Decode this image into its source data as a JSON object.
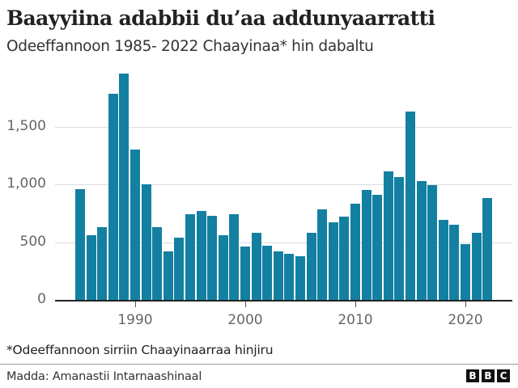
{
  "header": {
    "title": "Baayyiina adabbii du’aa addunyaarratti",
    "subtitle": "Odeeffannoon 1985- 2022 Chaayinaa* hin dabaltu"
  },
  "footer": {
    "footnote": "*Odeeffannoon sirriin Chaayinaarraa hinjiru",
    "source": "Madda: Amanastii Intarnaashinaal",
    "logo_letters": [
      "B",
      "B",
      "C"
    ]
  },
  "colors": {
    "bar": "#1380A1",
    "gridline": "#dcdcdc",
    "axis": "#222222"
  },
  "chart_data": {
    "type": "bar",
    "title": "Baayyiina adabbii du’aa addunyaarratti",
    "subtitle": "Odeeffannoon 1985- 2022 Chaayinaa* hin dabaltu",
    "xlabel": "",
    "ylabel": "",
    "categories": [
      1985,
      1986,
      1987,
      1988,
      1989,
      1990,
      1991,
      1992,
      1993,
      1994,
      1995,
      1996,
      1997,
      1998,
      1999,
      2000,
      2001,
      2002,
      2003,
      2004,
      2005,
      2006,
      2007,
      2008,
      2009,
      2010,
      2011,
      2012,
      2013,
      2014,
      2015,
      2016,
      2017,
      2018,
      2019,
      2020,
      2021,
      2022
    ],
    "values": [
      960,
      560,
      630,
      1780,
      1960,
      1300,
      1000,
      630,
      420,
      540,
      740,
      770,
      730,
      560,
      740,
      460,
      580,
      470,
      420,
      400,
      380,
      580,
      780,
      670,
      720,
      830,
      950,
      910,
      1110,
      1060,
      1630,
      1030,
      990,
      690,
      650,
      480,
      580,
      880
    ],
    "ylim": [
      0,
      2000
    ],
    "yticks": [
      0,
      500,
      1000,
      1500
    ],
    "ytick_labels": [
      "0",
      "500",
      "1,000",
      "1,500"
    ],
    "xticks": [
      1990,
      2000,
      2010,
      2020
    ],
    "xtick_labels": [
      "1990",
      "2000",
      "2010",
      "2020"
    ],
    "grid": true,
    "legend": null,
    "annotations": [
      "*Odeeffannoon sirriin Chaayinaarraa hinjiru"
    ],
    "source": "Madda: Amanastii Intarnaashinaal"
  }
}
